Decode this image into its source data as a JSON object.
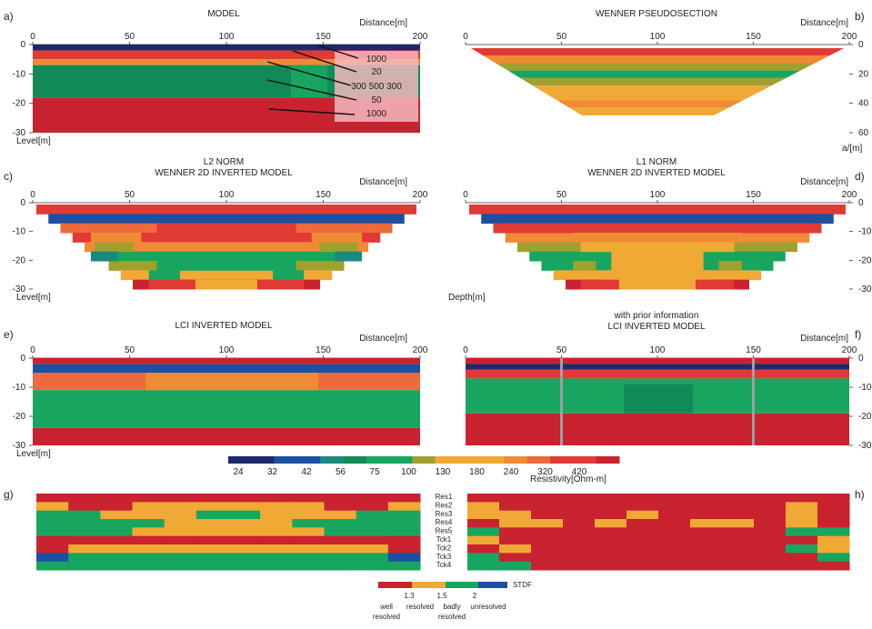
{
  "colors": {
    "dark": "#1c2a6a",
    "blue": "#1d4fa3",
    "teal": "#1a8a7e",
    "dgreen": "#128a57",
    "green": "#18a55f",
    "olive": "#a1a02e",
    "amber": "#f1a936",
    "orange": "#f08a35",
    "rorange": "#ed6a3c",
    "red": "#e03a35",
    "dred": "#c8232f",
    "pink": "#f3b7bd",
    "stdf_red": "#c8232f",
    "stdf_amber": "#f1a936",
    "stdf_green": "#18a55f",
    "stdf_blue": "#1d4fa3",
    "bar": "#9aa0a6"
  },
  "x_ticks": [
    "0",
    "50",
    "100",
    "150",
    "200"
  ],
  "panels": {
    "a": {
      "letter": "a)",
      "title": "MODEL",
      "dist": "Distance[m]",
      "ylab": "Level[m]",
      "yticks": [
        "0",
        "-10",
        "-20",
        "-30"
      ]
    },
    "b": {
      "letter": "b)",
      "title": "WENNER PSEUDOSECTION",
      "dist": "Distance[m]",
      "ylab": "a/[m]",
      "yticks": [
        "0",
        "20",
        "40",
        "60"
      ]
    },
    "c": {
      "letter": "c)",
      "title": "WENNER 2D INVERTED MODEL",
      "title2": "L2 NORM",
      "dist": "Distance[m]",
      "ylab": "Level[m]",
      "yticks": [
        "0",
        "-10",
        "-20",
        "-30"
      ]
    },
    "d": {
      "letter": "d)",
      "title": "WENNER 2D INVERTED MODEL",
      "title2": "L1 NORM",
      "dist": "Distance[m]",
      "ylab": "Depth[m]",
      "yticks": [
        "0",
        "-10",
        "-20",
        "-30"
      ]
    },
    "e": {
      "letter": "e)",
      "title": "LCI INVERTED MODEL",
      "dist": "Distance[m]",
      "ylab": "Level[m]",
      "yticks": [
        "0",
        "-10",
        "-20",
        "-30"
      ]
    },
    "f": {
      "letter": "f)",
      "title": "LCI INVERTED MODEL",
      "title2": "with prior information",
      "dist": "Distance[m]",
      "ylab": "",
      "yticks": [
        "0",
        "-10",
        "-20",
        "-30"
      ]
    },
    "g": {
      "letter": "g)"
    },
    "h": {
      "letter": "h)"
    }
  },
  "model_labels": [
    "1000",
    "20",
    "300 500 300",
    "50",
    "1000"
  ],
  "resistivity": {
    "title": "Resistivity[Ohm-m]",
    "ticks": [
      "24",
      "32",
      "42",
      "56",
      "75",
      "100",
      "130",
      "180",
      "240",
      "320",
      "420"
    ]
  },
  "uncertainty": {
    "rows": [
      "Res1",
      "Res2",
      "Res3",
      "Res4",
      "Res5",
      "Tck1",
      "Tck2",
      "Tck3",
      "Tck4"
    ],
    "title": "STDF",
    "ticks": [
      "1.3",
      "1.5",
      "2"
    ],
    "classes": [
      "well resolved",
      "resolved",
      "badly resolved",
      "unresolved"
    ]
  },
  "chart_data": [
    {
      "panel": "a",
      "type": "heatmap",
      "title": "MODEL",
      "xlabel": "Distance[m]",
      "ylabel": "Level[m]",
      "xlim": [
        0,
        200
      ],
      "ylim": [
        -30,
        0
      ],
      "layers": [
        {
          "top": 0,
          "bottom": -2,
          "color": "dark",
          "label": ""
        },
        {
          "top": -2,
          "bottom": -5,
          "color": "red",
          "label": "1000"
        },
        {
          "top": -5,
          "bottom": -7,
          "color": "orange",
          "label": "20"
        },
        {
          "top": -7,
          "bottom": -18,
          "color": "dgreen",
          "label": "300 500 300"
        },
        {
          "top": -18,
          "bottom": -30,
          "color": "dred",
          "label": "1000"
        }
      ],
      "annotations": [
        "1000",
        "20",
        "300 500 300",
        "50",
        "1000"
      ]
    },
    {
      "panel": "b",
      "type": "heatmap",
      "title": "WENNER PSEUDOSECTION",
      "xlabel": "Distance[m]",
      "ylabel": "a/[m]",
      "xlim": [
        0,
        200
      ],
      "ylim": [
        0,
        60
      ],
      "bands_from_top": [
        "red",
        "orange",
        "olive",
        "green",
        "olive",
        "amber",
        "amber",
        "orange",
        "amber"
      ]
    },
    {
      "panel": "c",
      "type": "heatmap",
      "title": "WENNER 2D INVERTED MODEL",
      "subtitle": "L2 NORM",
      "xlabel": "Distance[m]",
      "ylabel": "Level[m]",
      "xlim": [
        0,
        200
      ],
      "ylim": [
        -30,
        0
      ],
      "rows_from_top": [
        "red",
        "blue",
        "rorange",
        "red",
        "orange",
        "green",
        "olive",
        "amber",
        "dred"
      ]
    },
    {
      "panel": "d",
      "type": "heatmap",
      "title": "WENNER 2D INVERTED MODEL",
      "subtitle": "L1 NORM",
      "xlabel": "Distance[m]",
      "ylabel": "Depth[m]",
      "xlim": [
        0,
        200
      ],
      "ylim": [
        -30,
        0
      ],
      "rows_from_top": [
        "red",
        "blue",
        "red",
        "orange",
        "olive",
        "green",
        "green",
        "amber",
        "dred"
      ]
    },
    {
      "panel": "e",
      "type": "heatmap",
      "title": "LCI INVERTED MODEL",
      "xlabel": "Distance[m]",
      "ylabel": "Level[m]",
      "xlim": [
        0,
        200
      ],
      "ylim": [
        -30,
        0
      ],
      "layers": [
        {
          "top": 0,
          "bottom": -2,
          "color": "dred"
        },
        {
          "top": -2,
          "bottom": -5,
          "color": "blue"
        },
        {
          "top": -5,
          "bottom": -11,
          "color": "rorange"
        },
        {
          "top": -11,
          "bottom": -24,
          "color": "green"
        },
        {
          "top": -24,
          "bottom": -30,
          "color": "dred"
        }
      ]
    },
    {
      "panel": "f",
      "type": "heatmap",
      "title": "LCI INVERTED MODEL",
      "subtitle": "with prior information",
      "xlabel": "Distance[m]",
      "xlim": [
        0,
        200
      ],
      "ylim": [
        -30,
        0
      ],
      "prior_positions_m": [
        50,
        150
      ],
      "layers": [
        {
          "top": 0,
          "bottom": -2,
          "color": "dred"
        },
        {
          "top": -2,
          "bottom": -4,
          "color": "dark"
        },
        {
          "top": -4,
          "bottom": -7,
          "color": "red"
        },
        {
          "top": -7,
          "bottom": -19,
          "color": "green"
        },
        {
          "top": -19,
          "bottom": -30,
          "color": "dred"
        }
      ]
    },
    {
      "panel": "g",
      "type": "table",
      "rows": [
        "Res1",
        "Res2",
        "Res3",
        "Res4",
        "Res5",
        "Tck1",
        "Tck2",
        "Tck3",
        "Tck4"
      ],
      "cells": [
        [
          "dred",
          "dred",
          "dred",
          "dred",
          "dred",
          "dred",
          "dred",
          "dred",
          "dred",
          "dred",
          "dred",
          "dred"
        ],
        [
          "amber",
          "dred",
          "dred",
          "amber",
          "amber",
          "amber",
          "amber",
          "amber",
          "amber",
          "dred",
          "dred",
          "amber"
        ],
        [
          "green",
          "green",
          "amber",
          "amber",
          "amber",
          "green",
          "green",
          "amber",
          "amber",
          "amber",
          "green",
          "green"
        ],
        [
          "green",
          "green",
          "green",
          "green",
          "amber",
          "amber",
          "amber",
          "amber",
          "green",
          "green",
          "green",
          "green"
        ],
        [
          "green",
          "green",
          "green",
          "amber",
          "amber",
          "amber",
          "amber",
          "amber",
          "amber",
          "green",
          "green",
          "green"
        ],
        [
          "dred",
          "dred",
          "dred",
          "dred",
          "dred",
          "dred",
          "dred",
          "dred",
          "dred",
          "dred",
          "dred",
          "dred"
        ],
        [
          "dred",
          "amber",
          "amber",
          "amber",
          "amber",
          "amber",
          "amber",
          "amber",
          "amber",
          "amber",
          "amber",
          "dred"
        ],
        [
          "blue",
          "green",
          "green",
          "green",
          "green",
          "green",
          "green",
          "green",
          "green",
          "green",
          "green",
          "blue"
        ],
        [
          "green",
          "green",
          "green",
          "green",
          "green",
          "green",
          "green",
          "green",
          "green",
          "green",
          "green",
          "green"
        ]
      ]
    },
    {
      "panel": "h",
      "type": "table",
      "rows": [
        "Res1",
        "Res2",
        "Res3",
        "Res4",
        "Res5",
        "Tck1",
        "Tck2",
        "Tck3",
        "Tck4"
      ],
      "cells": [
        [
          "dred",
          "dred",
          "dred",
          "dred",
          "dred",
          "dred",
          "dred",
          "dred",
          "dred",
          "dred",
          "dred",
          "dred"
        ],
        [
          "amber",
          "dred",
          "dred",
          "dred",
          "dred",
          "dred",
          "dred",
          "dred",
          "dred",
          "dred",
          "amber",
          "dred"
        ],
        [
          "amber",
          "amber",
          "dred",
          "dred",
          "dred",
          "amber",
          "dred",
          "dred",
          "dred",
          "dred",
          "amber",
          "dred"
        ],
        [
          "dred",
          "amber",
          "amber",
          "dred",
          "amber",
          "dred",
          "dred",
          "amber",
          "amber",
          "dred",
          "amber",
          "dred"
        ],
        [
          "green",
          "dred",
          "dred",
          "dred",
          "dred",
          "dred",
          "dred",
          "dred",
          "dred",
          "dred",
          "green",
          "green"
        ],
        [
          "amber",
          "dred",
          "dred",
          "dred",
          "dred",
          "dred",
          "dred",
          "dred",
          "dred",
          "dred",
          "dred",
          "amber"
        ],
        [
          "dred",
          "amber",
          "dred",
          "dred",
          "dred",
          "dred",
          "dred",
          "dred",
          "dred",
          "dred",
          "green",
          "amber"
        ],
        [
          "green",
          "dred",
          "dred",
          "dred",
          "dred",
          "dred",
          "dred",
          "dred",
          "dred",
          "dred",
          "dred",
          "green"
        ],
        [
          "green",
          "green",
          "dred",
          "dred",
          "dred",
          "dred",
          "dred",
          "dred",
          "dred",
          "dred",
          "dred",
          "dred"
        ]
      ]
    }
  ]
}
